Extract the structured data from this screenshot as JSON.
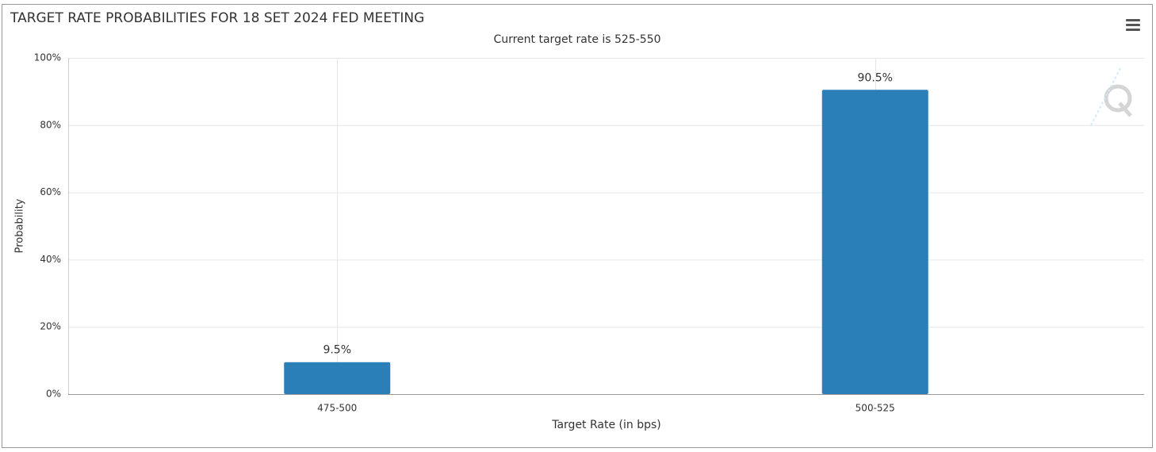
{
  "chart_data": {
    "type": "bar",
    "title": "TARGET RATE PROBABILITIES FOR 18 SET 2024 FED MEETING",
    "subtitle": "Current target rate is 525-550",
    "x_label": "Target Rate (in bps)",
    "y_label": "Probability",
    "categories": [
      "475-500",
      "500-525"
    ],
    "values": [
      9.5,
      90.5
    ],
    "value_labels": [
      "9.5%",
      "90.5%"
    ],
    "color": "#2a7fb8",
    "ylim": [
      0,
      100
    ],
    "yticks": [
      {
        "value": 0,
        "label": "0%"
      },
      {
        "value": 20,
        "label": "20%"
      },
      {
        "value": 40,
        "label": "40%"
      },
      {
        "value": 60,
        "label": "60%"
      },
      {
        "value": 80,
        "label": "80%"
      },
      {
        "value": 100,
        "label": "100%"
      }
    ],
    "grid": true
  }
}
